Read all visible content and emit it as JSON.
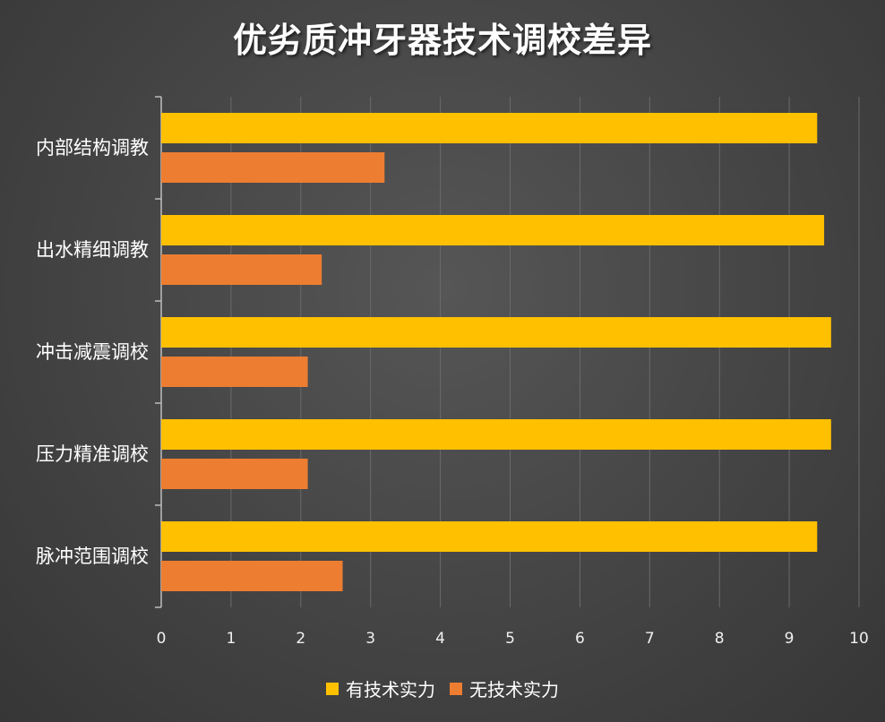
{
  "chart_data": {
    "type": "bar",
    "orientation": "horizontal",
    "title": "优劣质冲牙器技术调校差异",
    "categories": [
      "内部结构调教",
      "出水精细调教",
      "冲击减震调校",
      "压力精准调校",
      "脉冲范围调校"
    ],
    "series": [
      {
        "name": "有技术实力",
        "color": "#FFC000",
        "values": [
          9.4,
          9.5,
          9.6,
          9.6,
          9.4
        ]
      },
      {
        "name": "无技术实力",
        "color": "#ED7D31",
        "values": [
          3.2,
          2.3,
          2.1,
          2.1,
          2.6
        ]
      }
    ],
    "xlim": [
      0,
      10
    ],
    "xticks": [
      "0",
      "1",
      "2",
      "3",
      "4",
      "5",
      "6",
      "7",
      "8",
      "9",
      "10"
    ],
    "grid": true,
    "legend_position": "bottom"
  }
}
